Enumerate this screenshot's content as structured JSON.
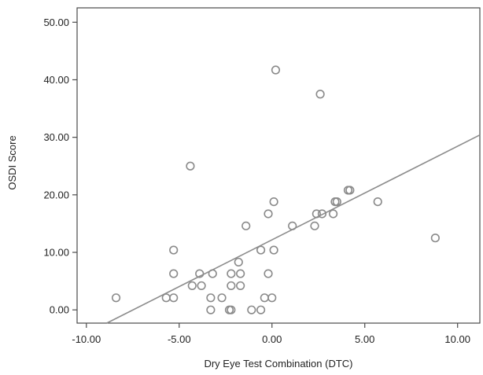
{
  "chart_data": {
    "type": "scatter",
    "xlabel": "Dry Eye Test Combination (DTC)",
    "ylabel": "OSDI Score",
    "xlim": [
      -10.5,
      11.2
    ],
    "ylim": [
      -2.3,
      52.5
    ],
    "x_ticks": [
      "-10.00",
      "-5.00",
      "0.00",
      "5.00",
      "10.00"
    ],
    "x_tick_values": [
      -10,
      -5,
      0,
      5,
      10
    ],
    "y_ticks": [
      "0.00",
      "10.00",
      "20.00",
      "30.00",
      "40.00",
      "50.00"
    ],
    "y_tick_values": [
      0,
      10,
      20,
      30,
      40,
      50
    ],
    "grid": false,
    "point_color": "#8a8a8a",
    "line_color": "#8c8c8c",
    "points": [
      {
        "x": -8.4,
        "y": 2.1
      },
      {
        "x": -5.7,
        "y": 2.1
      },
      {
        "x": -5.3,
        "y": 2.1
      },
      {
        "x": -5.3,
        "y": 10.4
      },
      {
        "x": -5.3,
        "y": 6.3
      },
      {
        "x": -4.4,
        "y": 25.0
      },
      {
        "x": -4.3,
        "y": 4.2
      },
      {
        "x": -3.9,
        "y": 6.3
      },
      {
        "x": -3.8,
        "y": 4.2
      },
      {
        "x": -3.3,
        "y": 0.0
      },
      {
        "x": -3.3,
        "y": 2.1
      },
      {
        "x": -3.2,
        "y": 6.3
      },
      {
        "x": -2.7,
        "y": 2.1
      },
      {
        "x": -2.3,
        "y": 0.0
      },
      {
        "x": -2.2,
        "y": 0.0
      },
      {
        "x": -2.2,
        "y": 4.2
      },
      {
        "x": -2.2,
        "y": 6.3
      },
      {
        "x": -1.8,
        "y": 8.3
      },
      {
        "x": -1.7,
        "y": 4.2
      },
      {
        "x": -1.7,
        "y": 6.3
      },
      {
        "x": -1.4,
        "y": 14.6
      },
      {
        "x": -1.1,
        "y": 0.0
      },
      {
        "x": -0.6,
        "y": 0.0
      },
      {
        "x": -0.6,
        "y": 10.4
      },
      {
        "x": -0.4,
        "y": 2.1
      },
      {
        "x": -0.2,
        "y": 16.7
      },
      {
        "x": -0.2,
        "y": 6.3
      },
      {
        "x": 0.0,
        "y": 2.1
      },
      {
        "x": 0.1,
        "y": 10.4
      },
      {
        "x": 0.1,
        "y": 18.8
      },
      {
        "x": 0.2,
        "y": 41.7
      },
      {
        "x": 1.1,
        "y": 14.6
      },
      {
        "x": 2.3,
        "y": 14.6
      },
      {
        "x": 2.4,
        "y": 16.7
      },
      {
        "x": 2.6,
        "y": 37.5
      },
      {
        "x": 2.7,
        "y": 16.7
      },
      {
        "x": 3.3,
        "y": 16.7
      },
      {
        "x": 3.4,
        "y": 18.8
      },
      {
        "x": 3.5,
        "y": 18.8
      },
      {
        "x": 4.1,
        "y": 20.8
      },
      {
        "x": 4.2,
        "y": 20.8
      },
      {
        "x": 5.7,
        "y": 18.8
      },
      {
        "x": 8.8,
        "y": 12.5
      }
    ],
    "fit_line": {
      "x": [
        -8.9,
        11.2
      ],
      "y": [
        -2.3,
        30.4
      ]
    }
  }
}
